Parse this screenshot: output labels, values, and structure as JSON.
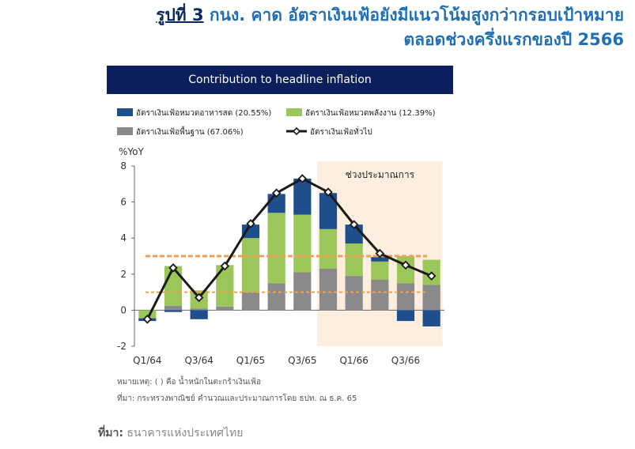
{
  "heading": {
    "prefix": "รูปที่ 3",
    "line1": "กนง. คาด อัตราเงินเฟ้อยังมีแนวโน้มสูงกว่ากรอบเป้าหมาย",
    "line2": "ตลอดช่วงครึ่งแรกของปี 2566"
  },
  "notes": {
    "note": "หมายเหตุ: ( ) คือ น้ำหนักในตะกร้าเงินเฟ้อ",
    "source": "ที่มา: กระทรวงพาณิชย์ คำนวณและประมาณการโดย ธปท. ณ ธ.ค. 65"
  },
  "source": {
    "label": "ที่มา:",
    "text": "ธนาคารแห่งประเทศไทย"
  },
  "chart_data": {
    "type": "bar",
    "title": "Contribution to headline inflation",
    "ylabel": "%YoY",
    "ylim": [
      -2,
      8
    ],
    "yticks": [
      -2,
      0,
      2,
      4,
      6,
      8
    ],
    "x_tick_labels": [
      {
        "index": 0,
        "label": "Q1/64"
      },
      {
        "index": 2,
        "label": "Q3/64"
      },
      {
        "index": 4,
        "label": "Q1/65"
      },
      {
        "index": 6,
        "label": "Q3/65"
      },
      {
        "index": 8,
        "label": "Q1/66"
      },
      {
        "index": 10,
        "label": "Q3/66"
      }
    ],
    "categories": [
      "Q1/64",
      "Q2/64",
      "Q3/64",
      "Q4/64",
      "Q1/65",
      "Q2/65",
      "Q3/65",
      "Q4/65",
      "Q1/66",
      "Q2/66",
      "Q3/66",
      "Q4/66"
    ],
    "series": [
      {
        "name": "อัตราเงินเฟ้อพื้นฐาน (67.06%)",
        "kind": "bar",
        "color": "#8a8a8a",
        "values": [
          0.0,
          0.25,
          0.1,
          0.2,
          1.0,
          1.5,
          2.1,
          2.3,
          1.9,
          1.7,
          1.5,
          1.4
        ]
      },
      {
        "name": "อัตราเงินเฟ้อหมวดพลังงาน (12.39%)",
        "kind": "bar",
        "color": "#9bc75a",
        "values": [
          -0.45,
          2.2,
          1.0,
          2.3,
          3.0,
          3.9,
          3.2,
          2.2,
          1.8,
          1.0,
          1.5,
          1.4
        ]
      },
      {
        "name": "อัตราเงินเฟ้อหมวดอาหารสด (20.55%)",
        "kind": "bar",
        "color": "#1f4e8c",
        "values": [
          -0.15,
          -0.1,
          -0.5,
          0.0,
          0.75,
          1.05,
          2.0,
          2.0,
          1.05,
          0.25,
          -0.6,
          -0.9
        ]
      },
      {
        "name": "อัตราเงินเฟ้อทั่วไป",
        "kind": "line",
        "color": "#1a1a1a",
        "values": [
          -0.5,
          2.35,
          0.7,
          2.45,
          4.8,
          6.5,
          7.3,
          6.55,
          4.75,
          3.15,
          2.5,
          1.9
        ]
      }
    ],
    "legend": {
      "placement": "top-left",
      "order": [
        2,
        1,
        0,
        3
      ]
    },
    "reference_lines": [
      {
        "value": 3.0,
        "color": "#f0a052",
        "style": "dashed"
      },
      {
        "value": 1.0,
        "color": "#f0a052",
        "style": "dashed"
      }
    ],
    "shaded_region": {
      "from_index": 7,
      "to_index": 11,
      "label": "ช่วงประมาณการ",
      "color": "#fdeee0"
    },
    "grid": false
  }
}
